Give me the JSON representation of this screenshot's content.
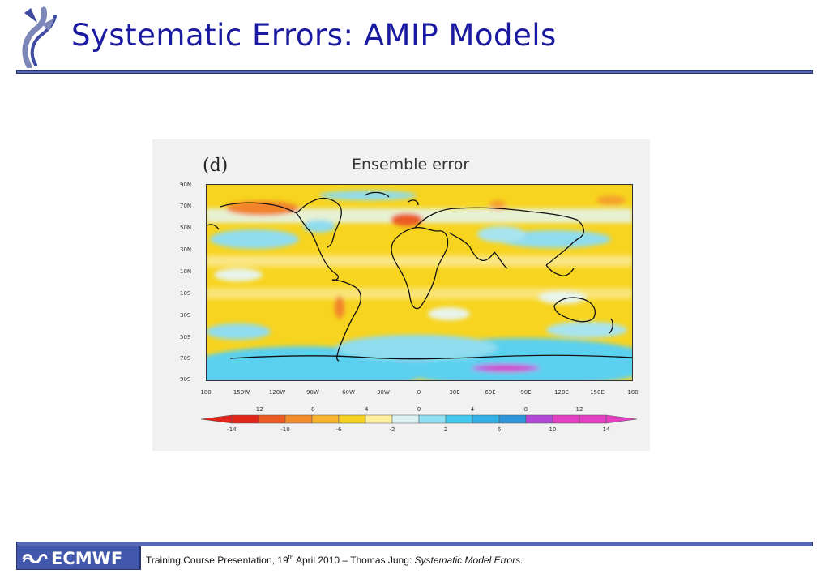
{
  "slide": {
    "title": "Systematic Errors: AMIP Models"
  },
  "figure": {
    "panel_label": "(d)",
    "title": "Ensemble error",
    "lat_labels": [
      "90N",
      "70N",
      "50N",
      "30N",
      "10N",
      "10S",
      "30S",
      "50S",
      "70S",
      "90S"
    ],
    "lon_labels": [
      "180",
      "150W",
      "120W",
      "90W",
      "60W",
      "30W",
      "0",
      "30E",
      "60E",
      "90E",
      "120E",
      "150E",
      "180"
    ],
    "colorbar": {
      "upper_labels": [
        "-12",
        "-8",
        "-4",
        "0",
        "4",
        "8",
        "12"
      ],
      "lower_labels": [
        "-14",
        "-10",
        "-6",
        "-2",
        "2",
        "6",
        "10",
        "14"
      ],
      "colors": [
        "#e3261c",
        "#ee5a24",
        "#f48b2a",
        "#f8b42c",
        "#f6d21e",
        "#fff0a0",
        "#dcf2f2",
        "#8ee0f2",
        "#42c8ee",
        "#32b0e6",
        "#2e95dc",
        "#b347d8",
        "#e43ec2"
      ]
    }
  },
  "footer": {
    "logo_text": "ECMWF",
    "prefix": "Training Course Presentation, 19",
    "sup": "th",
    "middle": " April 2010 – Thomas Jung: ",
    "italic": "Systematic Model Errors."
  }
}
